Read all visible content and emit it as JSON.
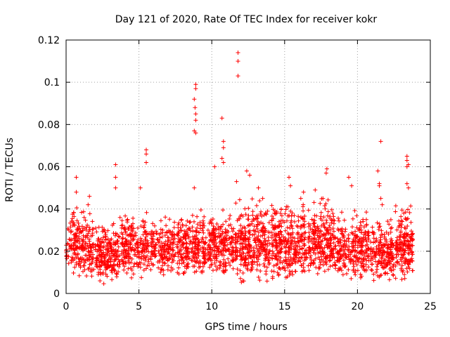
{
  "chart_data": {
    "type": "scatter",
    "title": "Day 121 of 2020, Rate Of TEC Index for receiver kokr",
    "xlabel": "GPS time / hours",
    "ylabel": "ROTI / TECUs",
    "xlim": [
      0,
      25
    ],
    "ylim": [
      0,
      0.12
    ],
    "x_ticks": [
      0,
      5,
      10,
      15,
      20,
      25
    ],
    "x_tick_labels": [
      "0",
      "5",
      "10",
      "15",
      "20",
      "25"
    ],
    "y_ticks": [
      0,
      0.02,
      0.04,
      0.06,
      0.08,
      0.1,
      0.12
    ],
    "y_tick_labels": [
      "0",
      "0.02",
      "0.04",
      "0.06",
      "0.08",
      "0.1",
      "0.12"
    ],
    "grid": true,
    "marker": "plus",
    "color": "#ff0000",
    "series": [
      {
        "name": "ROTI",
        "clusters": [
          {
            "x_start": 0.0,
            "x_end": 1.9,
            "y_min": 0.005,
            "y_max": 0.042,
            "count": 220
          },
          {
            "x_start": 2.0,
            "x_end": 3.7,
            "y_min": 0.004,
            "y_max": 0.036,
            "count": 220
          },
          {
            "x_start": 3.8,
            "x_end": 5.7,
            "y_min": 0.006,
            "y_max": 0.04,
            "count": 220
          },
          {
            "x_start": 5.8,
            "x_end": 7.5,
            "y_min": 0.008,
            "y_max": 0.038,
            "count": 180
          },
          {
            "x_start": 7.6,
            "x_end": 9.6,
            "y_min": 0.006,
            "y_max": 0.04,
            "count": 240
          },
          {
            "x_start": 9.7,
            "x_end": 11.5,
            "y_min": 0.007,
            "y_max": 0.04,
            "count": 220
          },
          {
            "x_start": 11.6,
            "x_end": 14.0,
            "y_min": 0.004,
            "y_max": 0.045,
            "count": 320
          },
          {
            "x_start": 14.1,
            "x_end": 16.5,
            "y_min": 0.005,
            "y_max": 0.045,
            "count": 320
          },
          {
            "x_start": 16.6,
            "x_end": 18.5,
            "y_min": 0.006,
            "y_max": 0.045,
            "count": 260
          },
          {
            "x_start": 18.6,
            "x_end": 20.8,
            "y_min": 0.005,
            "y_max": 0.04,
            "count": 260
          },
          {
            "x_start": 20.9,
            "x_end": 22.5,
            "y_min": 0.005,
            "y_max": 0.036,
            "count": 200
          },
          {
            "x_start": 22.6,
            "x_end": 23.8,
            "y_min": 0.005,
            "y_max": 0.042,
            "count": 180
          }
        ],
        "spikes": [
          {
            "x": 0.7,
            "y": 0.055
          },
          {
            "x": 0.7,
            "y": 0.048
          },
          {
            "x": 1.6,
            "y": 0.046
          },
          {
            "x": 3.4,
            "y": 0.061
          },
          {
            "x": 3.4,
            "y": 0.055
          },
          {
            "x": 3.4,
            "y": 0.05
          },
          {
            "x": 5.1,
            "y": 0.05
          },
          {
            "x": 5.5,
            "y": 0.068
          },
          {
            "x": 5.5,
            "y": 0.066
          },
          {
            "x": 5.5,
            "y": 0.062
          },
          {
            "x": 8.9,
            "y": 0.099
          },
          {
            "x": 8.9,
            "y": 0.097
          },
          {
            "x": 8.8,
            "y": 0.092
          },
          {
            "x": 8.85,
            "y": 0.088
          },
          {
            "x": 8.9,
            "y": 0.085
          },
          {
            "x": 8.9,
            "y": 0.082
          },
          {
            "x": 8.8,
            "y": 0.077
          },
          {
            "x": 8.9,
            "y": 0.076
          },
          {
            "x": 8.8,
            "y": 0.05
          },
          {
            "x": 10.2,
            "y": 0.06
          },
          {
            "x": 10.7,
            "y": 0.083
          },
          {
            "x": 10.8,
            "y": 0.072
          },
          {
            "x": 10.8,
            "y": 0.069
          },
          {
            "x": 10.7,
            "y": 0.064
          },
          {
            "x": 10.8,
            "y": 0.062
          },
          {
            "x": 11.8,
            "y": 0.114
          },
          {
            "x": 11.8,
            "y": 0.11
          },
          {
            "x": 11.8,
            "y": 0.103
          },
          {
            "x": 11.7,
            "y": 0.053
          },
          {
            "x": 12.4,
            "y": 0.058
          },
          {
            "x": 12.6,
            "y": 0.056
          },
          {
            "x": 13.2,
            "y": 0.05
          },
          {
            "x": 15.3,
            "y": 0.055
          },
          {
            "x": 15.4,
            "y": 0.051
          },
          {
            "x": 16.3,
            "y": 0.048
          },
          {
            "x": 17.1,
            "y": 0.049
          },
          {
            "x": 17.9,
            "y": 0.059
          },
          {
            "x": 17.85,
            "y": 0.057
          },
          {
            "x": 19.4,
            "y": 0.055
          },
          {
            "x": 19.6,
            "y": 0.051
          },
          {
            "x": 21.6,
            "y": 0.072
          },
          {
            "x": 21.4,
            "y": 0.058
          },
          {
            "x": 21.5,
            "y": 0.052
          },
          {
            "x": 21.5,
            "y": 0.051
          },
          {
            "x": 21.6,
            "y": 0.045
          },
          {
            "x": 21.7,
            "y": 0.042
          },
          {
            "x": 23.4,
            "y": 0.065
          },
          {
            "x": 23.4,
            "y": 0.063
          },
          {
            "x": 23.5,
            "y": 0.061
          },
          {
            "x": 23.4,
            "y": 0.06
          },
          {
            "x": 23.4,
            "y": 0.052
          },
          {
            "x": 23.5,
            "y": 0.05
          }
        ]
      }
    ]
  }
}
